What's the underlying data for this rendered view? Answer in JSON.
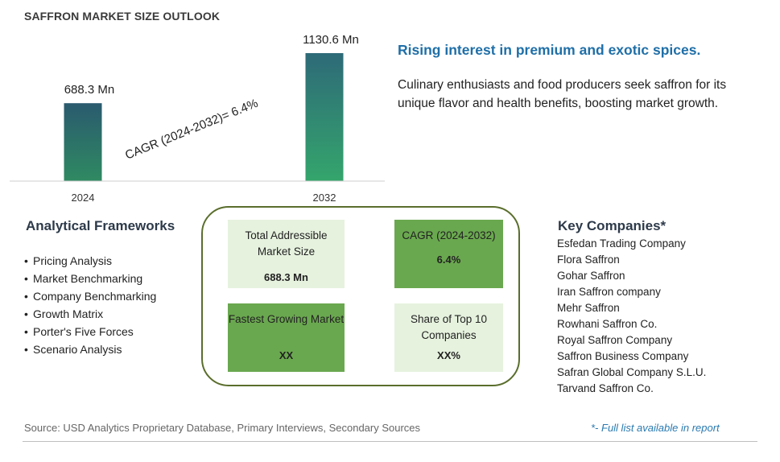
{
  "title": "SAFFRON MARKET SIZE OUTLOOK",
  "chart_data": {
    "type": "bar",
    "categories": [
      "2024",
      "2032"
    ],
    "values": [
      688.3,
      1130.6
    ],
    "value_labels": [
      "688.3 Mn",
      "1130.6 Mn"
    ],
    "annotation": "CAGR (2024-2032)=  6.4%",
    "xlabel": "",
    "ylabel": "",
    "grid": false,
    "bar_colors": [
      "#2f7a5c",
      "#33a06a"
    ]
  },
  "headline": "Rising interest in premium and exotic spices.",
  "description": "Culinary enthusiasts and food producers seek saffron for its unique flavor and health benefits, boosting market growth.",
  "frameworks": {
    "title": "Analytical Frameworks",
    "bullet": "•",
    "items": [
      "Pricing Analysis",
      "Market Benchmarking",
      "Company Benchmarking",
      "Growth Matrix",
      "Porter's Five Forces",
      "Scenario Analysis"
    ]
  },
  "metrics": {
    "tam": {
      "label": "Total Addressible Market Size",
      "value": "688.3 Mn"
    },
    "cagr": {
      "label": "CAGR (2024-2032)",
      "value": "6.4%"
    },
    "fastest": {
      "label": "Fastest Growing Market",
      "value": "XX"
    },
    "share": {
      "label": "Share of Top 10 Companies",
      "value": "XX%"
    }
  },
  "companies": {
    "title": "Key Companies*",
    "items": [
      "Esfedan Trading Company",
      "Flora Saffron",
      "Gohar Saffron",
      "Iran Saffron company",
      "Mehr Saffron",
      "Rowhani Saffron Co.",
      "Royal Saffron Company",
      "Saffron Business Company",
      "Safran Global Company S.L.U.",
      "Tarvand Saffron Co."
    ]
  },
  "source": "Source: USD Analytics Proprietary Database, Primary Interviews, Secondary Sources",
  "footnote": "*- Full list available in report",
  "colors": {
    "accent_blue": "#1f6fa8",
    "card_light": "#e6f2de",
    "card_dark": "#6aa84f",
    "panel_border": "#5a6e2c"
  }
}
